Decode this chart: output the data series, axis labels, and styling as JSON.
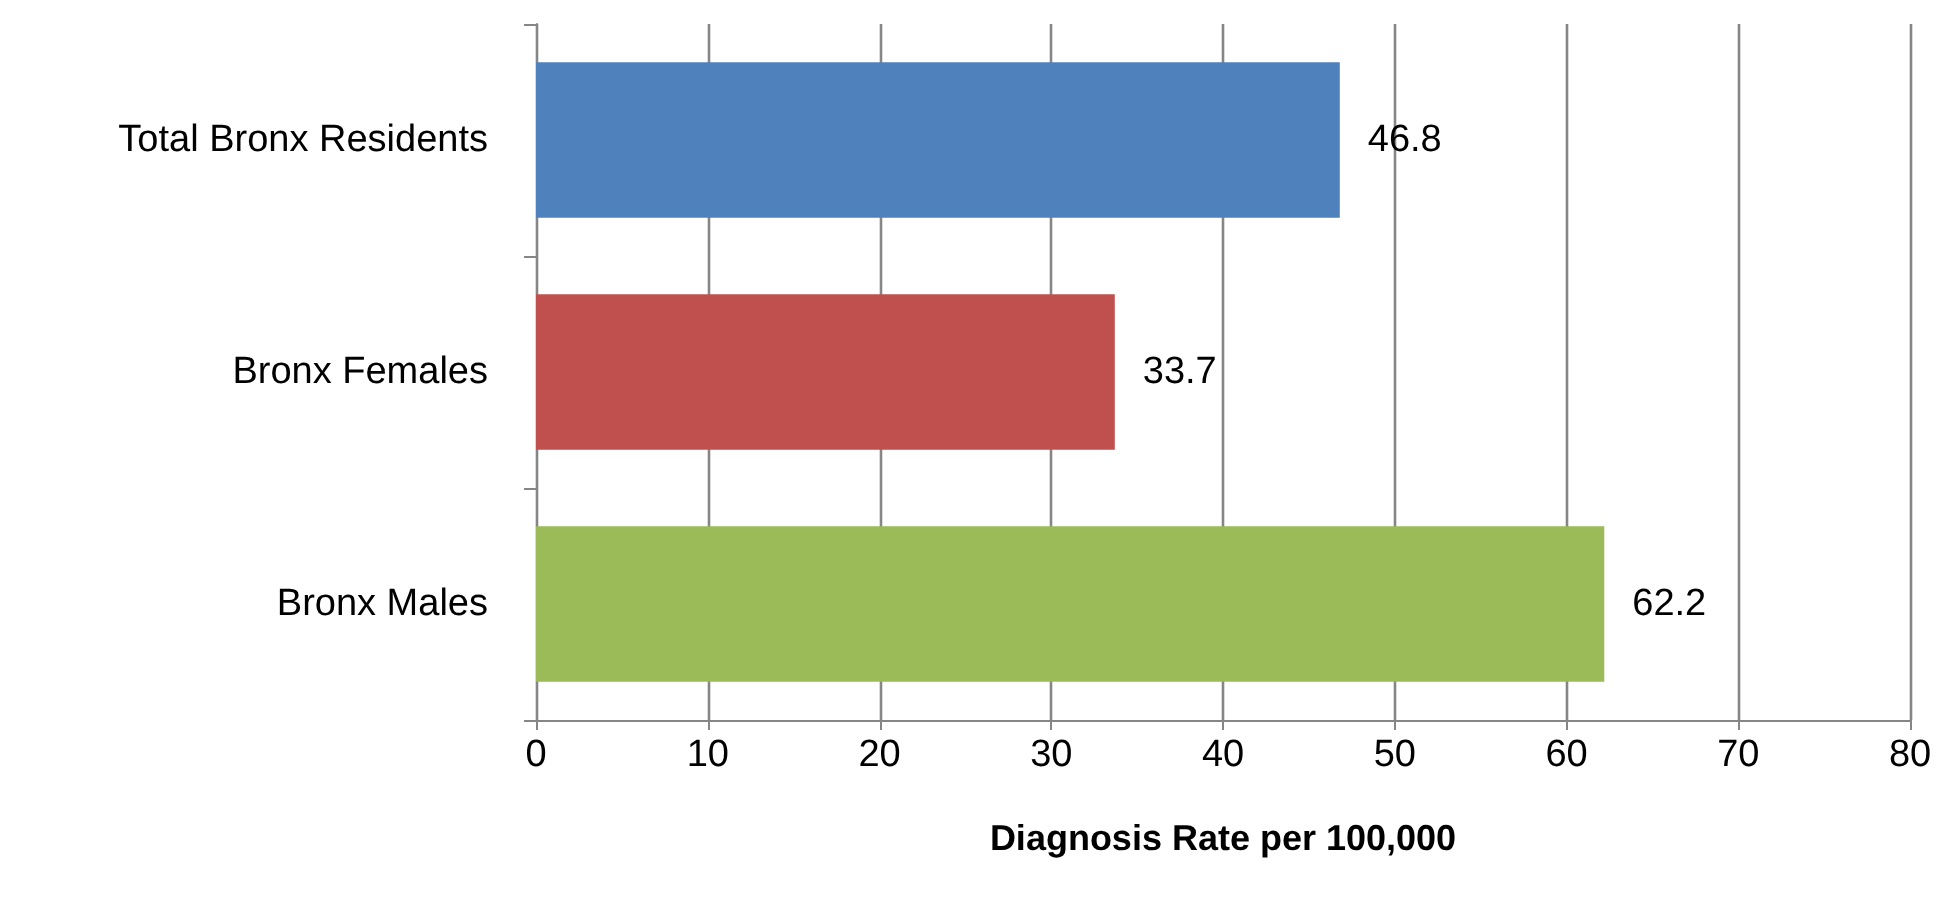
{
  "chart_data": {
    "type": "bar",
    "orientation": "horizontal",
    "xlabel": "Diagnosis Rate per 100,000",
    "categories": [
      "Total Bronx Residents",
      "Bronx Females",
      "Bronx Males"
    ],
    "values": [
      46.8,
      33.7,
      62.2
    ],
    "colors": [
      "#4f81bd",
      "#c0504d",
      "#9bbb59"
    ],
    "xlim": [
      0,
      80
    ],
    "xticks": [
      0,
      10,
      20,
      30,
      40,
      50,
      60,
      70,
      80
    ],
    "grid": "x",
    "data_labels": true
  }
}
